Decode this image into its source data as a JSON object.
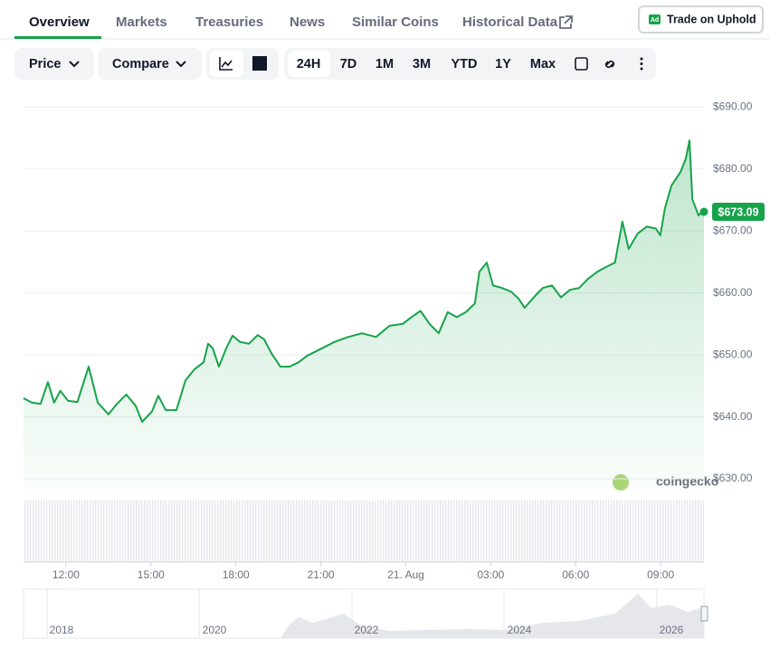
{
  "tabs": [
    "Overview",
    "Markets",
    "Treasuries",
    "News",
    "Similar Coins",
    "Historical Data"
  ],
  "ad_button": {
    "badge": "Ad",
    "label": "Trade on Uphold"
  },
  "toolbar": {
    "price": "Price",
    "compare": "Compare",
    "ranges": [
      "24H",
      "7D",
      "1M",
      "3M",
      "YTD",
      "1Y",
      "Max"
    ]
  },
  "watermark": "coingecko",
  "navigator_labels": [
    "2018",
    "2020",
    "2022",
    "2024",
    "2026"
  ],
  "chart_data": {
    "type": "line",
    "color": "#16a34a",
    "x": [
      10.5,
      10.79,
      11.1,
      11.36,
      11.58,
      11.8,
      12.07,
      12.4,
      12.8,
      13.12,
      13.5,
      13.8,
      14.13,
      14.46,
      14.69,
      15.04,
      15.26,
      15.52,
      15.9,
      16.22,
      16.54,
      16.86,
      17.02,
      17.18,
      17.4,
      17.66,
      17.88,
      18.14,
      18.46,
      18.77,
      19.0,
      19.25,
      19.57,
      19.89,
      20.21,
      20.53,
      21.01,
      21.49,
      21.97,
      22.45,
      22.95,
      23.43,
      23.89,
      24.2,
      24.52,
      24.84,
      25.16,
      25.48,
      25.8,
      26.12,
      26.44,
      26.6,
      26.86,
      27.08,
      27.4,
      27.72,
      27.98,
      28.2,
      28.52,
      28.84,
      29.16,
      29.48,
      29.8,
      30.12,
      30.44,
      30.76,
      31.08,
      31.39,
      31.65,
      31.87,
      32.19,
      32.51,
      32.83,
      32.99,
      33.15,
      33.38,
      33.7,
      33.89,
      34.02,
      34.12,
      34.34,
      34.53
    ],
    "values": [
      643.0,
      642.3,
      642.1,
      645.6,
      642.3,
      644.2,
      642.6,
      642.4,
      648.1,
      642.3,
      640.4,
      642.1,
      643.6,
      641.8,
      639.2,
      640.9,
      643.4,
      641.1,
      641.1,
      645.9,
      647.7,
      648.8,
      651.8,
      651.1,
      648.1,
      651.1,
      653.1,
      652.1,
      651.8,
      653.2,
      652.5,
      650.3,
      648.1,
      648.1,
      648.8,
      649.9,
      651.0,
      652.1,
      652.9,
      653.5,
      652.9,
      654.7,
      655.0,
      656.1,
      657.1,
      655.0,
      653.5,
      656.9,
      656.1,
      656.9,
      658.3,
      663.4,
      664.9,
      661.2,
      660.8,
      660.2,
      659.1,
      657.6,
      659.3,
      660.8,
      661.2,
      659.3,
      660.5,
      660.8,
      662.3,
      663.4,
      664.2,
      664.9,
      671.5,
      667.1,
      669.6,
      670.7,
      670.4,
      669.3,
      673.6,
      677.3,
      679.5,
      681.7,
      684.6,
      675.1,
      672.5,
      673.4
    ],
    "xlim": [
      10.5,
      34.53
    ],
    "xticks": [
      {
        "value": 12,
        "label": "12:00"
      },
      {
        "value": 15,
        "label": "15:00"
      },
      {
        "value": 18,
        "label": "18:00"
      },
      {
        "value": 21,
        "label": "21:00"
      },
      {
        "value": 24,
        "label": "21. Aug"
      },
      {
        "value": 27,
        "label": "03:00"
      },
      {
        "value": 30,
        "label": "06:00"
      },
      {
        "value": 33,
        "label": "09:00"
      }
    ],
    "ylim": [
      628.4,
      691.5
    ],
    "yticks": [
      {
        "value": 630,
        "label": "$630.00"
      },
      {
        "value": 640,
        "label": "$640.00"
      },
      {
        "value": 650,
        "label": "$650.00"
      },
      {
        "value": 660,
        "label": "$660.00"
      },
      {
        "value": 670,
        "label": "$670.00"
      },
      {
        "value": 680,
        "label": "$680.00"
      },
      {
        "value": 690,
        "label": "$690.00"
      }
    ],
    "grid": true,
    "current_price": 673.09,
    "current_price_label": "$673.09"
  }
}
